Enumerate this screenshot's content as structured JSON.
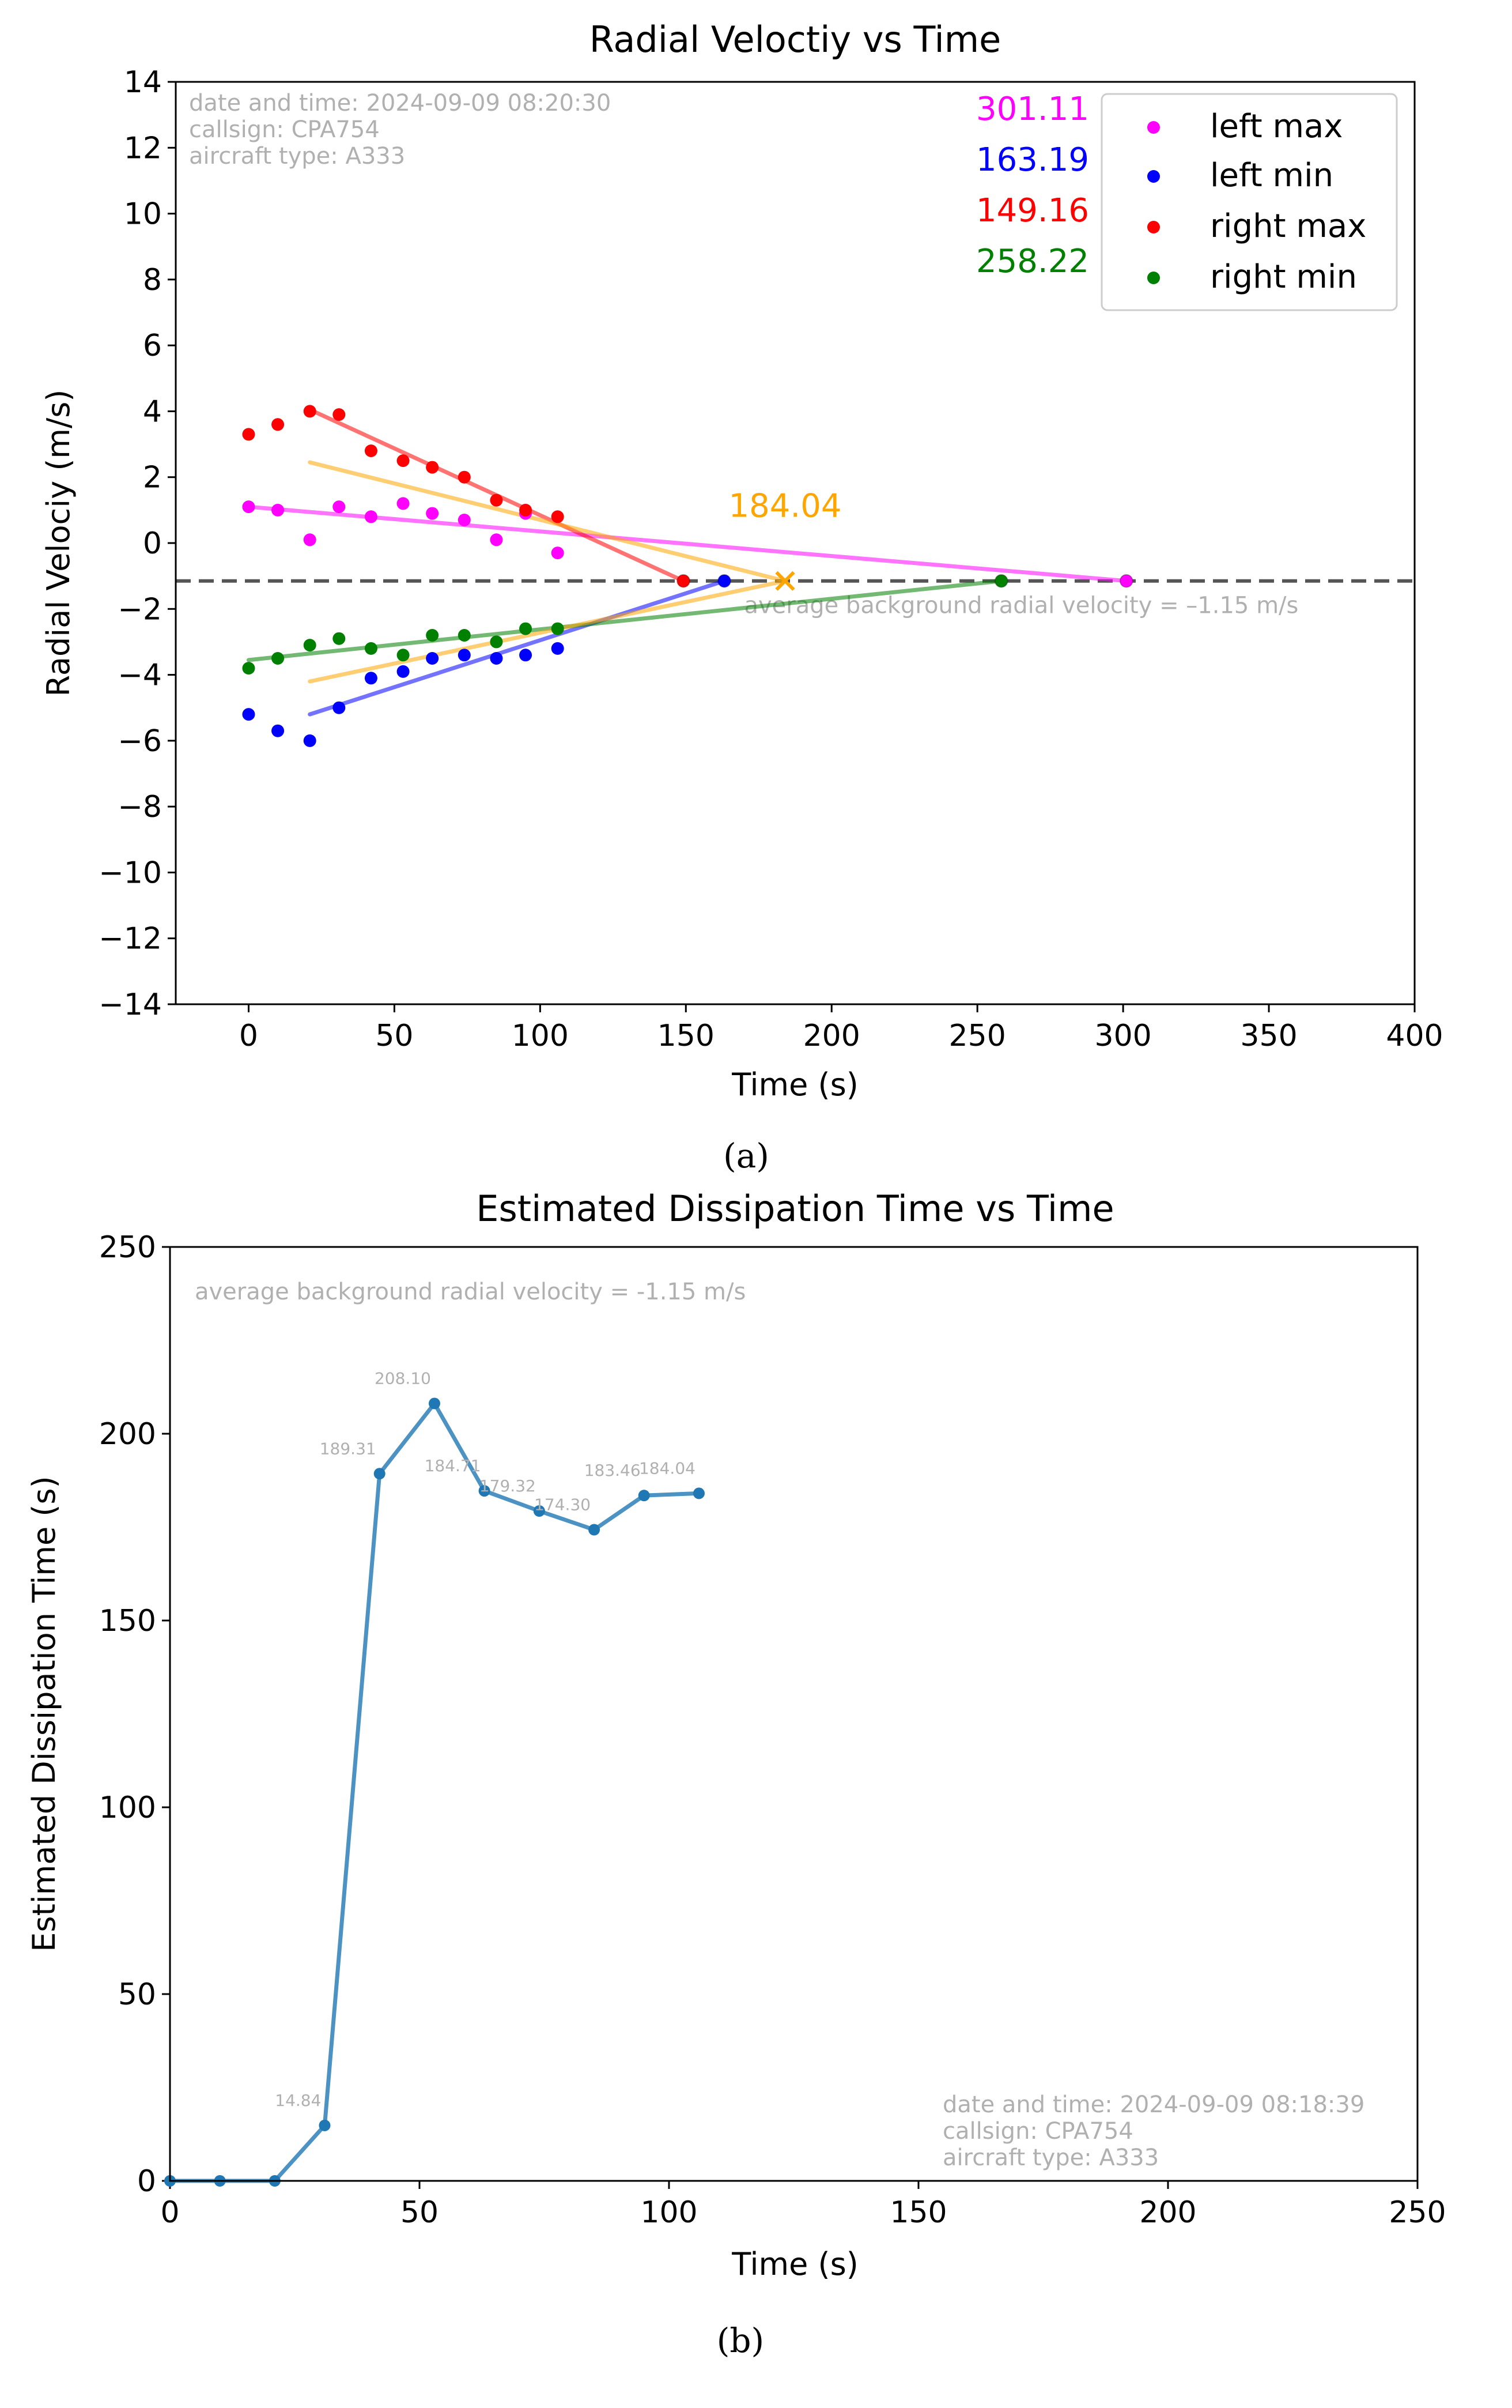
{
  "chart_data": [
    {
      "type": "scatter",
      "title": "Radial Veloctiy vs Time",
      "xlabel": "Time (s)",
      "ylabel": "Radial Velociy (m/s)",
      "xlim": [
        -25,
        400
      ],
      "ylim": [
        -14,
        14
      ],
      "xticks": [
        0,
        50,
        100,
        150,
        200,
        250,
        300,
        350,
        400
      ],
      "xtick_labels": [
        "0",
        "50",
        "100",
        "150",
        "200",
        "250",
        "300",
        "350",
        "400"
      ],
      "yticks": [
        -14,
        -12,
        -10,
        -8,
        -6,
        -4,
        -2,
        0,
        2,
        4,
        6,
        8,
        10,
        12,
        14
      ],
      "ytick_labels": [
        "−14",
        "−12",
        "−10",
        "−8",
        "−6",
        "−4",
        "−2",
        "0",
        "2",
        "4",
        "6",
        "8",
        "10",
        "12",
        "14"
      ],
      "info_lines": [
        "date and time: 2024-09-09 08:20:30",
        "callsign: CPA754",
        "aircraft type: A333"
      ],
      "legend": {
        "placement": "top-right",
        "entries": [
          {
            "label": "left max",
            "color": "#ff00ff"
          },
          {
            "label": "left min",
            "color": "#0000ff"
          },
          {
            "label": "right max",
            "color": "#ff0000"
          },
          {
            "label": "right min",
            "color": "#008000"
          }
        ]
      },
      "series": [
        {
          "name": "left max",
          "color": "#ff00ff",
          "x": [
            0,
            10,
            21,
            31,
            42,
            53,
            63,
            74,
            85,
            95,
            106
          ],
          "y": [
            1.1,
            1.0,
            0.1,
            1.1,
            0.8,
            1.2,
            0.9,
            0.7,
            0.1,
            0.9,
            -0.3
          ]
        },
        {
          "name": "left min",
          "color": "#0000ff",
          "x": [
            0,
            10,
            21,
            31,
            42,
            53,
            63,
            74,
            85,
            95,
            106
          ],
          "y": [
            -5.2,
            -5.7,
            -6.0,
            -5.0,
            -4.1,
            -3.9,
            -3.5,
            -3.4,
            -3.5,
            -3.4,
            -3.2
          ]
        },
        {
          "name": "right max",
          "color": "#ff0000",
          "x": [
            0,
            10,
            21,
            31,
            42,
            53,
            63,
            74,
            85,
            95,
            106
          ],
          "y": [
            3.3,
            3.6,
            4.0,
            3.9,
            2.8,
            2.5,
            2.3,
            2.0,
            1.3,
            1.0,
            0.8
          ]
        },
        {
          "name": "right min",
          "color": "#008000",
          "x": [
            0,
            10,
            21,
            31,
            42,
            53,
            63,
            74,
            85,
            95,
            106
          ],
          "y": [
            -3.8,
            -3.5,
            -3.1,
            -2.9,
            -3.2,
            -3.4,
            -2.8,
            -2.8,
            -3.0,
            -2.6,
            -2.6
          ]
        }
      ],
      "fit_lines": [
        {
          "name": "left max fit",
          "color": "#ff00ff",
          "x": [
            0,
            301.11
          ],
          "y": [
            1.1,
            -1.15
          ]
        },
        {
          "name": "left min fit",
          "color": "#0000ff",
          "x": [
            21,
            163.19
          ],
          "y": [
            -5.2,
            -1.15
          ]
        },
        {
          "name": "right max fit",
          "color": "#ff0000",
          "x": [
            21,
            149.16
          ],
          "y": [
            4.05,
            -1.15
          ]
        },
        {
          "name": "right min fit",
          "color": "#008000",
          "x": [
            0,
            258.22
          ],
          "y": [
            -3.55,
            -1.15
          ]
        },
        {
          "name": "mean max fit",
          "color": "#ffa500",
          "x": [
            21,
            184.04
          ],
          "y": [
            2.45,
            -1.15
          ]
        },
        {
          "name": "mean min fit",
          "color": "#ffa500",
          "x": [
            21,
            184.04
          ],
          "y": [
            -4.2,
            -1.15
          ]
        }
      ],
      "intercepts": [
        {
          "label": "301.11",
          "x": 301.11,
          "color": "#ff00ff"
        },
        {
          "label": "163.19",
          "x": 163.19,
          "color": "#0000ff"
        },
        {
          "label": "149.16",
          "x": 149.16,
          "color": "#ff0000"
        },
        {
          "label": "258.22",
          "x": 258.22,
          "color": "#008000"
        }
      ],
      "dissipation_estimate": {
        "label": "184.04",
        "x": 184.04,
        "y": -1.15,
        "color": "#ffa500"
      },
      "background_velocity": {
        "y": -1.15,
        "label": "average background radial velocity = –1.15 m/s"
      },
      "caption": "(a)"
    },
    {
      "type": "line",
      "title": "Estimated Dissipation Time vs Time",
      "xlabel": "Time (s)",
      "ylabel": "Estimated Dissipation Time (s)",
      "xlim": [
        0,
        250
      ],
      "ylim": [
        0,
        250
      ],
      "xticks": [
        0,
        50,
        100,
        150,
        200,
        250
      ],
      "xtick_labels": [
        "0",
        "50",
        "100",
        "150",
        "200",
        "250"
      ],
      "yticks": [
        0,
        50,
        100,
        150,
        200,
        250
      ],
      "ytick_labels": [
        "0",
        "50",
        "100",
        "150",
        "200",
        "250"
      ],
      "background_note": "average background radial velocity = -1.15 m/s",
      "info_lines": [
        "date and time: 2024-09-09 08:18:39",
        "callsign: CPA754",
        "aircraft type: A333"
      ],
      "series": [
        {
          "name": "estimated dissipation time",
          "color": "#1f77b4",
          "x": [
            0,
            10,
            21,
            31,
            42,
            53,
            63,
            74,
            85,
            95,
            106
          ],
          "y": [
            0,
            0,
            0,
            14.84,
            189.31,
            208.1,
            184.71,
            179.32,
            174.3,
            183.46,
            184.04
          ]
        }
      ],
      "point_labels": [
        {
          "text": "14.84",
          "index": 3
        },
        {
          "text": "189.31",
          "index": 4
        },
        {
          "text": "208.10",
          "index": 5
        },
        {
          "text": "184.71",
          "index": 6
        },
        {
          "text": "179.32",
          "index": 7
        },
        {
          "text": "174.30",
          "index": 8
        },
        {
          "text": "183.46",
          "index": 9
        },
        {
          "text": "184.04",
          "index": 10
        }
      ],
      "caption": "(b)"
    }
  ]
}
